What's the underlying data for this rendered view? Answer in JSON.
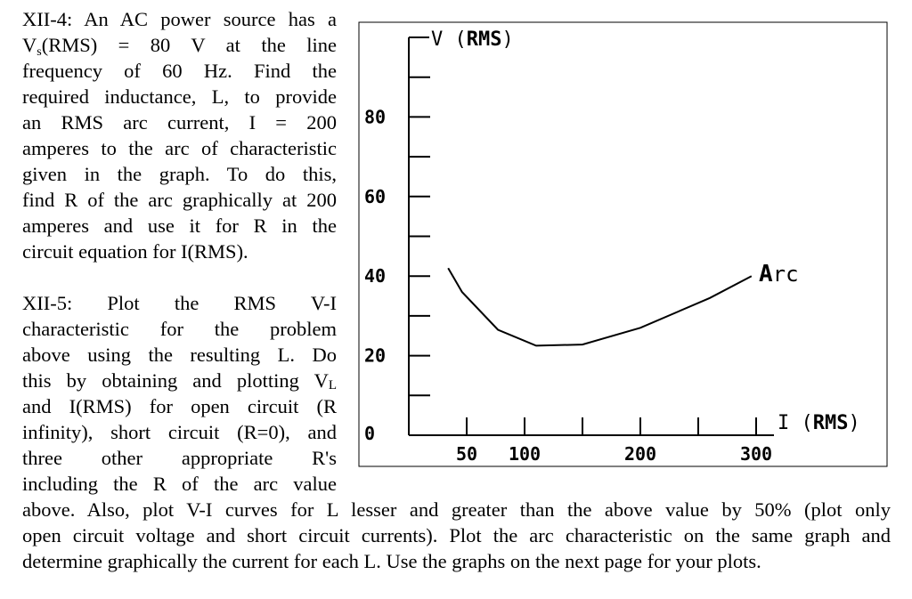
{
  "problem_4": {
    "lines": [
      "XII-4: An AC power source has a",
      "V_s(RMS) = 80 V at the line",
      "frequency of 60 Hz. Find the",
      "required inductance, L, to provide",
      "an RMS arc current, I = 200",
      "amperes to the arc of characteristic",
      "given in the graph. To do this,",
      "find R of the arc graphically at 200",
      "amperes and use it for R in the",
      "circuit equation for I(RMS)."
    ],
    "line2_parts": {
      "v": "V",
      "s": "s",
      "rest": "(RMS) = 80 V at the line"
    }
  },
  "problem_5": {
    "lines": [
      "XII-5: Plot the RMS V-I",
      "characteristic for the problem",
      "above using the resulting L. Do",
      "this by obtaining and plotting V",
      "and I(RMS) for open circuit (R",
      "infinity), short circuit (R=0), and",
      "three other appropriate R's",
      "including the R of the arc value",
      "above. Also, plot V-I curves for L lesser and greater than the above value by 50% (plot only",
      "open circuit voltage and short circuit currents). Plot the arc characteristic on the same graph and",
      "determine graphically the current for each L. Use the graphs on the next page for your plots."
    ],
    "vl_subscript": "L"
  },
  "chart_data": {
    "type": "line",
    "title": "",
    "ylabel_prefix": "V (",
    "ylabel_bold": "RMS",
    "ylabel_suffix": ")",
    "xlabel_prefix": "I (",
    "xlabel_bold": "RMS",
    "xlabel_suffix": ")",
    "xlim": [
      0,
      340
    ],
    "ylim": [
      0,
      100
    ],
    "y_ticks": [
      {
        "value": 0,
        "label": "0"
      },
      {
        "value": 20,
        "label": "20"
      },
      {
        "value": 40,
        "label": "40"
      },
      {
        "value": 60,
        "label": "60"
      },
      {
        "value": 80,
        "label": "80"
      }
    ],
    "y_minor_ticks": [
      10,
      30,
      50,
      70,
      90
    ],
    "x_ticks": [
      {
        "value": 50,
        "label": "50"
      },
      {
        "value": 100,
        "label": "100"
      },
      {
        "value": 200,
        "label": "200"
      },
      {
        "value": 300,
        "label": "300"
      }
    ],
    "x_minor_ticks": [
      50,
      100,
      150,
      200,
      250,
      300
    ],
    "series": [
      {
        "name": "Arc",
        "x": [
          34,
          46,
          77,
          110,
          150,
          200,
          260,
          296
        ],
        "y": [
          42,
          36,
          26.5,
          22.5,
          22.8,
          27,
          34.5,
          40
        ]
      }
    ],
    "annotation": "Arc"
  }
}
